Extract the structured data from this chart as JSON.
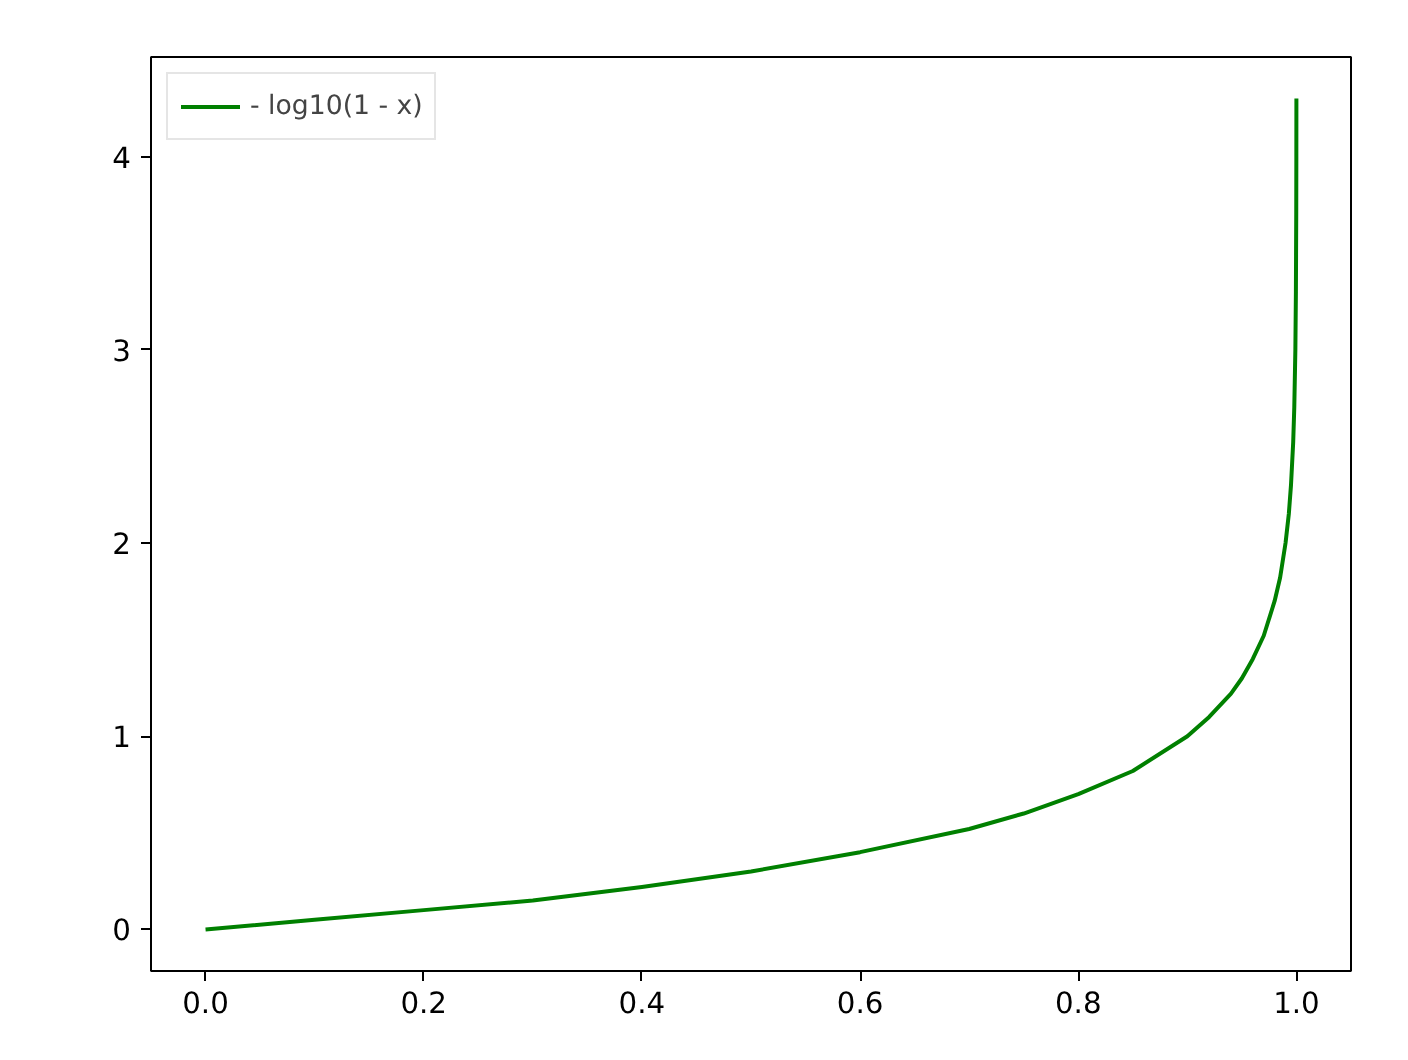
{
  "chart_data": {
    "type": "line",
    "x": [
      0,
      0.1,
      0.2,
      0.3,
      0.4,
      0.5,
      0.6,
      0.7,
      0.75,
      0.8,
      0.85,
      0.9,
      0.92,
      0.94,
      0.95,
      0.96,
      0.97,
      0.98,
      0.985,
      0.99,
      0.993,
      0.995,
      0.997,
      0.998,
      0.999,
      0.9995,
      0.9998,
      0.9999,
      0.99995
    ],
    "series": [
      {
        "name": "- log10(1 - x)",
        "color": "#008000",
        "values": [
          0,
          0.05,
          0.1,
          0.15,
          0.22,
          0.3,
          0.4,
          0.52,
          0.6,
          0.7,
          0.82,
          1.0,
          1.1,
          1.22,
          1.3,
          1.4,
          1.52,
          1.7,
          1.82,
          2.0,
          2.15,
          2.3,
          2.52,
          2.7,
          3.0,
          3.3,
          3.7,
          4.0,
          4.3
        ]
      }
    ],
    "xlim": [
      -0.05,
      1.05
    ],
    "ylim": [
      -0.215,
      4.515
    ],
    "xticks": [
      {
        "value": 0,
        "label": "0.0"
      },
      {
        "value": 0.2,
        "label": "0.2"
      },
      {
        "value": 0.4,
        "label": "0.4"
      },
      {
        "value": 0.6,
        "label": "0.6"
      },
      {
        "value": 0.8,
        "label": "0.8"
      },
      {
        "value": 1,
        "label": "1.0"
      }
    ],
    "yticks": [
      0,
      1,
      2,
      3,
      4
    ],
    "legend": "top left",
    "grid": false,
    "line_style": "solid"
  }
}
